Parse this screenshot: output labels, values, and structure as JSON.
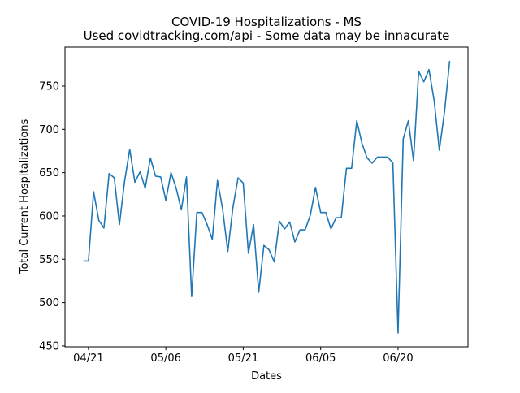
{
  "chart_data": {
    "type": "line",
    "title": "COVID-19 Hospitalizations - MS",
    "subtitle": "Used covidtracking.com/api - Some data may be innacurate",
    "x_label": "Dates",
    "y_label": "Total Current Hospitalizations",
    "categories": [
      null,
      "04/21",
      null,
      null,
      null,
      null,
      null,
      null,
      null,
      null,
      null,
      null,
      null,
      null,
      null,
      null,
      "05/06",
      null,
      null,
      null,
      null,
      null,
      null,
      null,
      null,
      null,
      null,
      null,
      null,
      null,
      null,
      "05/21",
      null,
      null,
      null,
      null,
      null,
      null,
      null,
      null,
      null,
      null,
      null,
      null,
      null,
      null,
      "06/05",
      null,
      null,
      null,
      null,
      null,
      null,
      null,
      null,
      null,
      null,
      null,
      null,
      null,
      null,
      "06/20",
      null,
      null,
      null,
      null,
      null,
      null,
      null,
      null,
      null,
      null
    ],
    "series": [
      {
        "name": "Hospitalizations",
        "color": "#1f77b4",
        "values": [
          548,
          548,
          628,
          595,
          586,
          649,
          644,
          590,
          640,
          677,
          639,
          651,
          632,
          667,
          646,
          645,
          618,
          650,
          632,
          607,
          645,
          507,
          604,
          604,
          590,
          573,
          641,
          608,
          559,
          610,
          644,
          638,
          557,
          590,
          512,
          566,
          561,
          547,
          594,
          585,
          593,
          570,
          584,
          584,
          601,
          633,
          604,
          604,
          585,
          598,
          598,
          655,
          655,
          710,
          684,
          667,
          661,
          668,
          668,
          668,
          661,
          465,
          689,
          710,
          664,
          767,
          755,
          769,
          733,
          676,
          720,
          779
        ]
      }
    ],
    "ylim": [
      449,
      795
    ],
    "yticks": [
      450,
      500,
      550,
      600,
      650,
      700,
      750
    ]
  }
}
